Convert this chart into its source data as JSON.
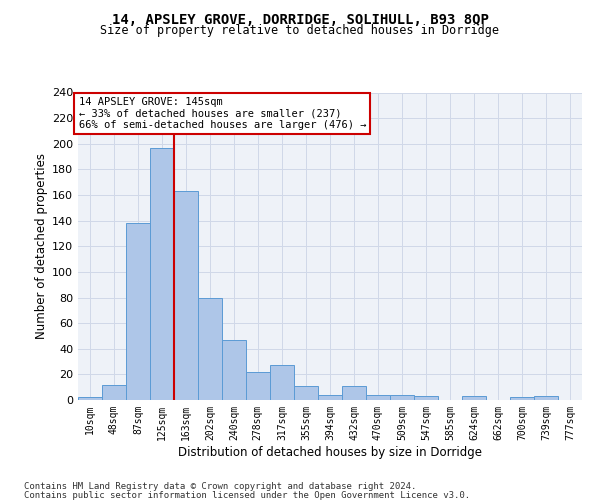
{
  "title1": "14, APSLEY GROVE, DORRIDGE, SOLIHULL, B93 8QP",
  "title2": "Size of property relative to detached houses in Dorridge",
  "xlabel": "Distribution of detached houses by size in Dorridge",
  "ylabel": "Number of detached properties",
  "bin_labels": [
    "10sqm",
    "48sqm",
    "87sqm",
    "125sqm",
    "163sqm",
    "202sqm",
    "240sqm",
    "278sqm",
    "317sqm",
    "355sqm",
    "394sqm",
    "432sqm",
    "470sqm",
    "509sqm",
    "547sqm",
    "585sqm",
    "624sqm",
    "662sqm",
    "700sqm",
    "739sqm",
    "777sqm"
  ],
  "bar_values": [
    2,
    12,
    138,
    197,
    163,
    80,
    47,
    22,
    27,
    11,
    4,
    11,
    4,
    4,
    3,
    0,
    3,
    0,
    2,
    3
  ],
  "bar_color": "#aec6e8",
  "bar_edge_color": "#5b9bd5",
  "grid_color": "#d0d8e8",
  "background_color": "#eef2f8",
  "vline_x": 145,
  "vline_color": "#cc0000",
  "annotation_line1": "14 APSLEY GROVE: 145sqm",
  "annotation_line2": "← 33% of detached houses are smaller (237)",
  "annotation_line3": "66% of semi-detached houses are larger (476) →",
  "annotation_box_color": "#ffffff",
  "annotation_box_edge": "#cc0000",
  "footer1": "Contains HM Land Registry data © Crown copyright and database right 2024.",
  "footer2": "Contains public sector information licensed under the Open Government Licence v3.0.",
  "ylim_max": 240,
  "yticks": [
    0,
    20,
    40,
    60,
    80,
    100,
    120,
    140,
    160,
    180,
    200,
    220,
    240
  ]
}
